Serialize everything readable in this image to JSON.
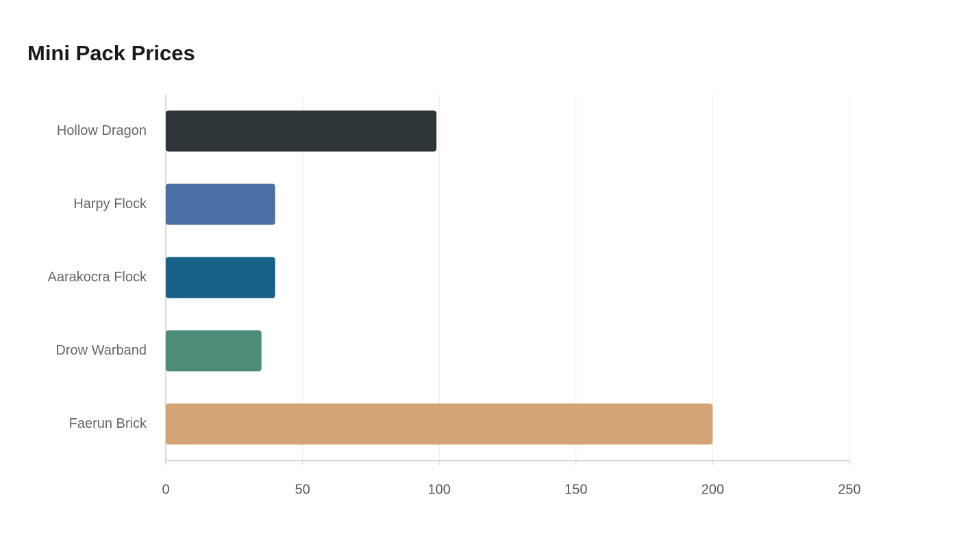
{
  "chart_data": {
    "type": "bar",
    "orientation": "horizontal",
    "title": "Mini Pack Prices",
    "categories": [
      "Hollow Dragon",
      "Harpy Flock",
      "Aarakocra Flock",
      "Drow Warband",
      "Faerun Brick"
    ],
    "values": [
      99,
      40,
      40,
      35,
      200
    ],
    "colors": [
      "#2e3538",
      "#4a6fa5",
      "#176087",
      "#4e8c7a",
      "#d4a574"
    ],
    "xlim": [
      0,
      250
    ],
    "xticks": [
      0,
      50,
      100,
      150,
      200,
      250
    ],
    "grid": true
  }
}
